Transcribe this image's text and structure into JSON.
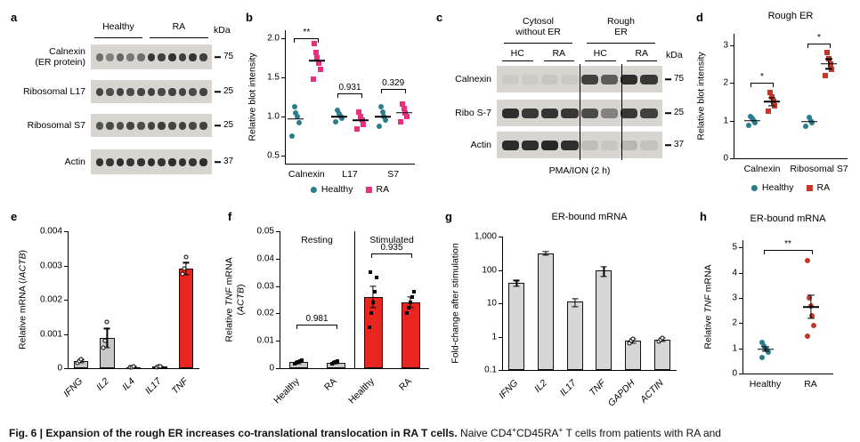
{
  "figure": {
    "panel_labels": {
      "a": "a",
      "b": "b",
      "c": "c",
      "d": "d",
      "e": "e",
      "f": "f",
      "g": "g",
      "h": "h"
    }
  },
  "panel_a": {
    "kda": "kDa",
    "lanes": 11,
    "headers": [
      {
        "label": "Healthy",
        "from": 0,
        "to": 5
      },
      {
        "label": "RA",
        "from": 5,
        "to": 11
      }
    ],
    "rows": [
      {
        "label": "Calnexin",
        "label2": "(ER protein)",
        "marker": "75",
        "pattern": [
          0.55,
          0.45,
          0.6,
          0.5,
          0.55,
          0.85,
          0.8,
          0.88,
          0.82,
          0.86,
          0.8
        ]
      },
      {
        "label": "Ribosomal L17",
        "marker": "25",
        "pattern": [
          0.78,
          0.72,
          0.8,
          0.75,
          0.78,
          0.8,
          0.76,
          0.8,
          0.78,
          0.75,
          0.8
        ]
      },
      {
        "label": "Ribosomal S7",
        "marker": "25",
        "pattern": [
          0.7,
          0.75,
          0.72,
          0.78,
          0.74,
          0.8,
          0.82,
          0.78,
          0.8,
          0.76,
          0.8
        ]
      },
      {
        "label": "Actin",
        "marker": "37",
        "pattern": [
          0.88,
          0.85,
          0.9,
          0.86,
          0.88,
          0.9,
          0.87,
          0.9,
          0.88,
          0.86,
          0.9
        ]
      }
    ]
  },
  "panel_c": {
    "kda": "kDa",
    "lanes": 8,
    "separators": [
      4,
      6
    ],
    "top_headers": [
      {
        "line1": "Cytosol",
        "line2": "without ER",
        "from": 0,
        "to": 4
      },
      {
        "line1": "Rough",
        "line2": "ER",
        "from": 4,
        "to": 8
      }
    ],
    "sub_headers": [
      {
        "label": "HC",
        "from": 0,
        "to": 2
      },
      {
        "label": "RA",
        "from": 2,
        "to": 4
      },
      {
        "label": "HC",
        "from": 4,
        "to": 6
      },
      {
        "label": "RA",
        "from": 6,
        "to": 8
      }
    ],
    "rows": [
      {
        "label": "Calnexin",
        "marker": "75",
        "pattern": [
          0.06,
          0.05,
          0.08,
          0.06,
          0.8,
          0.65,
          0.9,
          0.85
        ]
      },
      {
        "label": "Ribo S-7",
        "marker": "25",
        "pattern": [
          0.9,
          0.85,
          0.88,
          0.86,
          0.75,
          0.45,
          0.85,
          0.8
        ]
      },
      {
        "label": "Actin",
        "marker": "37",
        "pattern": [
          0.92,
          0.9,
          0.93,
          0.9,
          0.12,
          0.08,
          0.16,
          0.1
        ]
      }
    ],
    "bottom_label": "PMA/ION (2 h)"
  },
  "chart_data": [
    {
      "id": "b",
      "type": "scatter",
      "ylabel": [
        {
          "t": "Relative blot intensity"
        }
      ],
      "ymin": 0.4,
      "ymax": 2.1,
      "yticks": [
        {
          "v": 0.5,
          "label": "0.5"
        },
        {
          "v": 1.0,
          "label": "1.0"
        },
        {
          "v": 1.5,
          "label": "1.5"
        },
        {
          "v": 2.0,
          "label": "2.0"
        }
      ],
      "categories": [
        {
          "label": "Calnexin",
          "sig": {
            "label": "**",
            "y": 2.0
          },
          "groups": [
            {
              "series": "Healthy",
              "color": "#2a7d8c",
              "shape": "circle",
              "points": [
                0.75,
                0.92,
                1.0,
                1.05,
                1.13
              ],
              "mean": 0.97
            },
            {
              "series": "RA",
              "color": "#e6317e",
              "shape": "square",
              "points": [
                1.48,
                1.6,
                1.68,
                1.75,
                1.82,
                1.93
              ],
              "mean": 1.71
            }
          ]
        },
        {
          "label": "L17",
          "sig": {
            "label": "0.931",
            "y": 1.3
          },
          "groups": [
            {
              "series": "Healthy",
              "color": "#2a7d8c",
              "shape": "circle",
              "points": [
                0.93,
                0.98,
                1.0,
                1.04,
                1.08
              ],
              "mean": 1.0
            },
            {
              "series": "RA",
              "color": "#e6317e",
              "shape": "square",
              "points": [
                0.84,
                0.9,
                0.96,
                1.0,
                1.06
              ],
              "mean": 0.95
            }
          ]
        },
        {
          "label": "S7",
          "sig": {
            "label": "0.329",
            "y": 1.35
          },
          "groups": [
            {
              "series": "Healthy",
              "color": "#2a7d8c",
              "shape": "circle",
              "points": [
                0.88,
                0.95,
                1.0,
                1.06,
                1.12
              ],
              "mean": 1.0
            },
            {
              "series": "RA",
              "color": "#e6317e",
              "shape": "square",
              "points": [
                0.93,
                1.0,
                1.05,
                1.1,
                1.16
              ],
              "mean": 1.05
            }
          ]
        }
      ],
      "legend": [
        {
          "label": "Healthy",
          "color": "#2a7d8c",
          "shape": "circle"
        },
        {
          "label": "RA",
          "color": "#e6317e",
          "shape": "square"
        }
      ]
    },
    {
      "id": "d",
      "type": "scatter",
      "title": "Rough ER",
      "ylabel": [
        {
          "t": "Relative blot intensity"
        }
      ],
      "ymin": 0,
      "ymax": 3.3,
      "yticks": [
        {
          "v": 0,
          "label": "0"
        },
        {
          "v": 1,
          "label": "1"
        },
        {
          "v": 2,
          "label": "2"
        },
        {
          "v": 3,
          "label": "3"
        }
      ],
      "categories": [
        {
          "label": "Calnexin",
          "sig": {
            "label": "*",
            "y": 2.0
          },
          "groups": [
            {
              "series": "Healthy",
              "color": "#2a7d8c",
              "shape": "circle",
              "points": [
                0.88,
                0.95,
                1.0,
                1.05,
                1.1
              ],
              "mean": 1.0
            },
            {
              "series": "RA",
              "color": "#c0392b",
              "shape": "square",
              "points": [
                1.25,
                1.4,
                1.5,
                1.62,
                1.75
              ],
              "mean": 1.5,
              "sem": 0.1
            }
          ]
        },
        {
          "label": "Ribosomal S7",
          "sig": {
            "label": "*",
            "y": 3.05
          },
          "groups": [
            {
              "series": "Healthy",
              "color": "#2a7d8c",
              "shape": "circle",
              "points": [
                0.85,
                0.95,
                1.0,
                1.08
              ],
              "mean": 0.97
            },
            {
              "series": "RA",
              "color": "#c0392b",
              "shape": "square",
              "points": [
                2.2,
                2.35,
                2.5,
                2.65,
                2.8
              ],
              "mean": 2.5,
              "sem": 0.13
            }
          ]
        }
      ],
      "legend": [
        {
          "label": "Healthy",
          "color": "#2a7d8c",
          "shape": "circle"
        },
        {
          "label": "RA",
          "color": "#c0392b",
          "shape": "square"
        }
      ]
    },
    {
      "id": "e",
      "type": "bar",
      "ylabel": [
        {
          "t": "Relative mRNA (/"
        },
        {
          "t": "ACTB",
          "i": true
        },
        {
          "t": ")"
        }
      ],
      "ymin": 0,
      "ymax": 0.004,
      "yticks": [
        {
          "v": 0,
          "label": "0"
        },
        {
          "v": 0.001,
          "label": "0.001"
        },
        {
          "v": 0.002,
          "label": "0.002"
        },
        {
          "v": 0.003,
          "label": "0.003"
        },
        {
          "v": 0.004,
          "label": "0.004"
        }
      ],
      "point_style": "open-circle",
      "bars": [
        {
          "label": "IFNG",
          "italic": true,
          "value": 0.0002,
          "color": "#c8c8c8",
          "err": 5e-05,
          "points": [
            0.00015,
            0.0002,
            0.00026
          ]
        },
        {
          "label": "IL2",
          "italic": true,
          "value": 0.00088,
          "color": "#c8c8c8",
          "err": 0.00028,
          "points": [
            0.0006,
            0.0008,
            0.00135
          ]
        },
        {
          "label": "IL4",
          "italic": true,
          "value": 3e-05,
          "color": "#c8c8c8",
          "err": 1e-05,
          "points": [
            2e-05,
            3e-05,
            4e-05
          ]
        },
        {
          "label": "IL17",
          "italic": true,
          "value": 4e-05,
          "color": "#c8c8c8",
          "err": 1e-05,
          "points": [
            3e-05,
            4e-05,
            5e-05
          ]
        },
        {
          "label": "TNF",
          "italic": true,
          "value": 0.0029,
          "color": "#e8251f",
          "err": 0.00018,
          "points": [
            0.00275,
            0.0029,
            0.00325
          ]
        }
      ]
    },
    {
      "id": "f",
      "type": "bar",
      "ylabel": [
        {
          "t": "Relative "
        },
        {
          "t": "TNF",
          "i": true
        },
        {
          "t": " mRNA"
        },
        {
          "br": true
        },
        {
          "t": "("
        },
        {
          "t": "ACTB",
          "i": true
        },
        {
          "t": ")"
        }
      ],
      "ymin": 0,
      "ymax": 0.05,
      "yticks": [
        {
          "v": 0,
          "label": "0"
        },
        {
          "v": 0.01,
          "label": "0.01"
        },
        {
          "v": 0.02,
          "label": "0.02"
        },
        {
          "v": 0.03,
          "label": "0.03"
        },
        {
          "v": 0.04,
          "label": "0.04"
        },
        {
          "v": 0.05,
          "label": "0.05"
        }
      ],
      "sections": [
        {
          "label": "Resting"
        },
        {
          "label": "Stimulated"
        }
      ],
      "point_style": "dot",
      "bars": [
        {
          "label": "Healthy",
          "value": 0.0022,
          "color": "#c8c8c8",
          "err": 0.0005,
          "points": [
            0.0015,
            0.002,
            0.0022,
            0.0026,
            0.003
          ],
          "section": 0
        },
        {
          "label": "RA",
          "value": 0.0021,
          "color": "#c8c8c8",
          "err": 0.0004,
          "points": [
            0.0016,
            0.002,
            0.0022,
            0.0025
          ],
          "section": 0
        },
        {
          "label": "Healthy",
          "value": 0.026,
          "color": "#e8251f",
          "err": 0.004,
          "points": [
            0.015,
            0.02,
            0.024,
            0.028,
            0.033,
            0.035
          ],
          "section": 1
        },
        {
          "label": "RA",
          "value": 0.024,
          "color": "#e8251f",
          "err": 0.002,
          "points": [
            0.02,
            0.022,
            0.024,
            0.026,
            0.028
          ],
          "section": 1
        }
      ],
      "brackets": [
        {
          "bars": [
            0,
            1
          ],
          "label": "0.981",
          "y": 0.016
        },
        {
          "bars": [
            2,
            3
          ],
          "label": "0.935",
          "y": 0.042
        }
      ]
    },
    {
      "id": "g",
      "type": "bar",
      "log": true,
      "title": "ER-bound mRNA",
      "ylabel": [
        {
          "t": "Fold-change after stimulation"
        }
      ],
      "ymin": 0.1,
      "ymax": 1000,
      "yticks": [
        {
          "v": 0.1,
          "label": "0.1"
        },
        {
          "v": 1,
          "label": "1"
        },
        {
          "v": 10,
          "label": "10"
        },
        {
          "v": 100,
          "label": "100"
        },
        {
          "v": 1000,
          "label": "1,000"
        }
      ],
      "point_style": "open-circle",
      "bars": [
        {
          "label": "IFNG",
          "italic": true,
          "value": 40,
          "color": "#d6d6d6",
          "err": 8
        },
        {
          "label": "IL2",
          "italic": true,
          "value": 320,
          "color": "#d6d6d6",
          "err": 40
        },
        {
          "label": "IL17",
          "italic": true,
          "value": 11,
          "color": "#d6d6d6",
          "err": 3
        },
        {
          "label": "TNF",
          "italic": true,
          "value": 95,
          "color": "#d6d6d6",
          "err": 30
        },
        {
          "label": "GAPDH",
          "italic": true,
          "value": 0.75,
          "color": "#d6d6d6",
          "err": 0.1,
          "points": [
            0.65,
            0.75,
            0.85
          ]
        },
        {
          "label": "ACTIN",
          "italic": true,
          "value": 0.8,
          "color": "#d6d6d6",
          "err": 0.1,
          "points": [
            0.7,
            0.8,
            0.9
          ]
        }
      ]
    },
    {
      "id": "h",
      "type": "scatter",
      "title": "ER-bound mRNA",
      "ylabel": [
        {
          "t": "Relative "
        },
        {
          "t": "TNF",
          "i": true
        },
        {
          "t": " mRNA"
        }
      ],
      "ymin": 0,
      "ymax": 5.3,
      "yticks": [
        {
          "v": 0,
          "label": "0"
        },
        {
          "v": 1,
          "label": "1"
        },
        {
          "v": 2,
          "label": "2"
        },
        {
          "v": 3,
          "label": "3"
        },
        {
          "v": 4,
          "label": "4"
        },
        {
          "v": 5,
          "label": "5"
        }
      ],
      "sig_span": {
        "label": "**",
        "y": 4.9
      },
      "categories": [
        {
          "label": "Healthy",
          "groups": [
            {
              "series": "Healthy",
              "color": "#2a7d8c",
              "shape": "circle",
              "points": [
                0.65,
                0.85,
                0.95,
                1.0,
                1.1,
                1.25
              ],
              "mean": 0.97,
              "sem": 0.09
            }
          ]
        },
        {
          "label": "RA",
          "groups": [
            {
              "series": "RA",
              "color": "#c0392b",
              "shape": "circle",
              "points": [
                1.5,
                1.9,
                2.3,
                2.7,
                3.0,
                4.5
              ],
              "mean": 2.65,
              "sem": 0.45
            }
          ]
        }
      ]
    }
  ],
  "caption": {
    "bold": "Fig. 6 | Expansion of the rough ER increases co-translational translocation in RA T cells.",
    "rest_parts": [
      {
        "t": " Naive CD4"
      },
      {
        "t": "+",
        "sup": true
      },
      {
        "t": "CD45RA"
      },
      {
        "t": "+",
        "sup": true
      },
      {
        "t": " T cells from patients with RA and"
      }
    ]
  }
}
